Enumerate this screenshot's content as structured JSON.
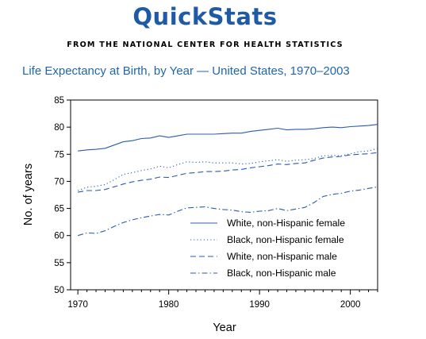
{
  "header": {
    "brand": "QuickStats",
    "source": "FROM THE NATIONAL CENTER FOR HEALTH STATISTICS",
    "title": "Life Expectancy at Birth, by Year — United States, 1970–2003"
  },
  "colors": {
    "brand": "#1f5aa6",
    "title": "#2166ac",
    "series": "#2b5cab",
    "axis": "#000000"
  },
  "chart_data": {
    "type": "line",
    "title": "Life Expectancy at Birth, by Year — United States, 1970–2003",
    "xlabel": "Year",
    "ylabel": "No. of years",
    "xlim": [
      1969.2,
      2003
    ],
    "ylim": [
      50,
      85
    ],
    "xticks": [
      1970,
      1980,
      1990,
      2000
    ],
    "yticks": [
      50,
      55,
      60,
      65,
      70,
      75,
      80,
      85
    ],
    "grid": false,
    "legend": "bottom-right",
    "x": [
      1970,
      1971,
      1972,
      1973,
      1974,
      1975,
      1976,
      1977,
      1978,
      1979,
      1980,
      1981,
      1982,
      1983,
      1984,
      1985,
      1986,
      1987,
      1988,
      1989,
      1990,
      1991,
      1992,
      1993,
      1994,
      1995,
      1996,
      1997,
      1998,
      1999,
      2000,
      2001,
      2002,
      2003
    ],
    "series": [
      {
        "name": "White, non-Hispanic female",
        "style": "solid",
        "values": [
          75.6,
          75.8,
          75.9,
          76.1,
          76.7,
          77.3,
          77.5,
          77.9,
          78.0,
          78.4,
          78.1,
          78.4,
          78.7,
          78.7,
          78.7,
          78.7,
          78.8,
          78.9,
          78.9,
          79.2,
          79.4,
          79.6,
          79.8,
          79.5,
          79.6,
          79.6,
          79.7,
          79.9,
          80.0,
          79.9,
          80.1,
          80.2,
          80.3,
          80.5
        ]
      },
      {
        "name": "Black, non-Hispanic female",
        "style": "dotted",
        "values": [
          68.3,
          68.9,
          69.1,
          69.4,
          70.3,
          71.3,
          71.6,
          72.0,
          72.3,
          72.8,
          72.5,
          73.1,
          73.6,
          73.5,
          73.6,
          73.4,
          73.4,
          73.4,
          73.2,
          73.3,
          73.6,
          73.8,
          74.0,
          73.7,
          73.9,
          74.0,
          74.2,
          74.7,
          74.8,
          74.7,
          75.1,
          75.5,
          75.6,
          76.1
        ]
      },
      {
        "name": "White, non-Hispanic male",
        "style": "dashed",
        "values": [
          68.0,
          68.3,
          68.3,
          68.5,
          69.0,
          69.5,
          69.9,
          70.2,
          70.4,
          70.8,
          70.7,
          71.1,
          71.5,
          71.6,
          71.8,
          71.8,
          71.9,
          72.1,
          72.2,
          72.5,
          72.7,
          72.9,
          73.2,
          73.1,
          73.3,
          73.4,
          73.9,
          74.3,
          74.5,
          74.6,
          74.9,
          75.0,
          75.1,
          75.3
        ]
      },
      {
        "name": "Black, non-Hispanic male",
        "style": "dashdot",
        "values": [
          60.0,
          60.5,
          60.4,
          60.9,
          61.7,
          62.4,
          62.9,
          63.3,
          63.6,
          63.9,
          63.8,
          64.5,
          65.1,
          65.2,
          65.3,
          65.0,
          64.8,
          64.7,
          64.4,
          64.3,
          64.5,
          64.6,
          65.0,
          64.6,
          64.9,
          65.2,
          66.1,
          67.2,
          67.6,
          67.8,
          68.2,
          68.4,
          68.7,
          69.0
        ]
      }
    ]
  }
}
